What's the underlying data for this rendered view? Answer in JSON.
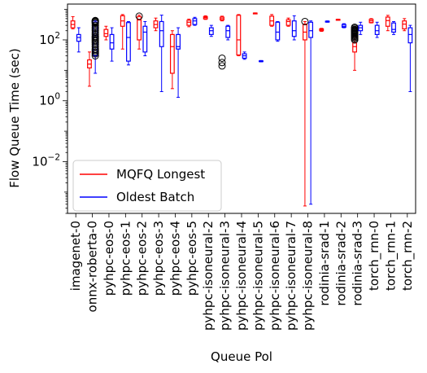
{
  "chart_data": {
    "type": "box",
    "title": "",
    "xlabel": "Queue Pol",
    "ylabel": "Flow Queue Time (sec)",
    "yscale": "log",
    "ylim": [
      0.0002,
      1500
    ],
    "yticks": [
      {
        "value": 0.01,
        "base": "10",
        "exp": "−2"
      },
      {
        "value": 1,
        "base": "10",
        "exp": "0"
      },
      {
        "value": 100,
        "base": "10",
        "exp": "2"
      }
    ],
    "categories": [
      "imagenet-0",
      "onnx-roberta-0",
      "pyhpc-eos-0",
      "pyhpc-eos-1",
      "pyhpc-eos-2",
      "pyhpc-eos-3",
      "pyhpc-eos-4",
      "pyhpc-eos-5",
      "pyhpc-isoneural-2",
      "pyhpc-isoneural-3",
      "pyhpc-isoneural-4",
      "pyhpc-isoneural-5",
      "pyhpc-isoneural-6",
      "pyhpc-isoneural-7",
      "pyhpc-isoneural-8",
      "rodinia-srad-1",
      "rodinia-srad-2",
      "rodinia-srad-3",
      "torch_rnn-0",
      "torch_rnn-1",
      "torch_rnn-2"
    ],
    "legend": {
      "position": "lower-left",
      "entries": [
        "MQFQ Longest",
        "Oldest Batch"
      ]
    },
    "colors": {
      "mqfq": "#ff0000",
      "oldest": "#0000ff"
    },
    "series": [
      {
        "name": "MQFQ Longest",
        "color": "#ff0000",
        "boxes": [
          {
            "wl": 230,
            "q1": 250,
            "med": 320,
            "q3": 420,
            "wh": 580,
            "fl": []
          },
          {
            "wl": 3,
            "q1": 12,
            "med": 16,
            "q3": 22,
            "wh": 40,
            "fl": []
          },
          {
            "wl": 100,
            "q1": 130,
            "med": 160,
            "q3": 220,
            "wh": 280,
            "fl": []
          },
          {
            "wl": 50,
            "q1": 280,
            "med": 420,
            "q3": 620,
            "wh": 680,
            "fl": []
          },
          {
            "wl": 50,
            "q1": 100,
            "med": 450,
            "q3": 580,
            "wh": 650,
            "fl": [
              600
            ]
          },
          {
            "wl": 200,
            "q1": 250,
            "med": 320,
            "q3": 420,
            "wh": 520,
            "fl": []
          },
          {
            "wl": 2.5,
            "q1": 8,
            "med": 60,
            "q3": 150,
            "wh": 200,
            "fl": []
          },
          {
            "wl": 270,
            "q1": 300,
            "med": 380,
            "q3": 440,
            "wh": 480,
            "fl": []
          },
          {
            "wl": 470,
            "q1": 490,
            "med": 540,
            "q3": 580,
            "wh": 620,
            "fl": []
          },
          {
            "wl": 420,
            "q1": 450,
            "med": 500,
            "q3": 560,
            "wh": 600,
            "fl": [
              25,
              18,
              14
            ]
          },
          {
            "wl": 30,
            "q1": 32,
            "med": 100,
            "q3": 640,
            "wh": 680,
            "fl": []
          },
          {
            "wl": 730,
            "q1": 740,
            "med": 750,
            "q3": 760,
            "wh": 770,
            "fl": []
          },
          {
            "wl": 280,
            "q1": 300,
            "med": 420,
            "q3": 600,
            "wh": 680,
            "fl": []
          },
          {
            "wl": 280,
            "q1": 300,
            "med": 400,
            "q3": 460,
            "wh": 520,
            "fl": []
          },
          {
            "wl": 0.00035,
            "q1": 100,
            "med": 180,
            "q3": 330,
            "wh": 400,
            "fl": [
              400
            ]
          },
          {
            "wl": 190,
            "q1": 200,
            "med": 215,
            "q3": 230,
            "wh": 240,
            "fl": []
          },
          {
            "wl": 440,
            "q1": 450,
            "med": 460,
            "q3": 470,
            "wh": 480,
            "fl": []
          },
          {
            "wl": 10,
            "q1": 40,
            "med": 60,
            "q3": 80,
            "wh": 150,
            "fl": [
              100,
              110,
              120,
              130,
              140,
              150,
              160,
              170,
              180,
              190,
              200,
              210,
              220,
              240,
              260
            ]
          },
          {
            "wl": 360,
            "q1": 370,
            "med": 420,
            "q3": 470,
            "wh": 500,
            "fl": []
          },
          {
            "wl": 200,
            "q1": 280,
            "med": 430,
            "q3": 560,
            "wh": 640,
            "fl": []
          },
          {
            "wl": 200,
            "q1": 230,
            "med": 330,
            "q3": 420,
            "wh": 500,
            "fl": []
          }
        ]
      },
      {
        "name": "Oldest Batch",
        "color": "#0000ff",
        "boxes": [
          {
            "wl": 40,
            "q1": 90,
            "med": 120,
            "q3": 150,
            "wh": 250,
            "fl": []
          },
          {
            "wl": 8,
            "q1": 30,
            "med": 140,
            "q3": 380,
            "wh": 420,
            "fl": [
              30,
              35,
              40,
              45,
              50,
              60,
              70,
              80,
              90,
              100,
              110,
              120,
              130,
              150,
              170,
              200,
              230,
              260,
              300,
              350,
              380,
              400,
              420,
              430
            ]
          },
          {
            "wl": 20,
            "q1": 50,
            "med": 80,
            "q3": 150,
            "wh": 250,
            "fl": []
          },
          {
            "wl": 15,
            "q1": 20,
            "med": 120,
            "q3": 370,
            "wh": 400,
            "fl": []
          },
          {
            "wl": 30,
            "q1": 40,
            "med": 180,
            "q3": 280,
            "wh": 400,
            "fl": []
          },
          {
            "wl": 2,
            "q1": 60,
            "med": 200,
            "q3": 400,
            "wh": 650,
            "fl": []
          },
          {
            "wl": 1.3,
            "q1": 50,
            "med": 60,
            "q3": 150,
            "wh": 250,
            "fl": []
          },
          {
            "wl": 300,
            "q1": 320,
            "med": 420,
            "q3": 500,
            "wh": 550,
            "fl": []
          },
          {
            "wl": 130,
            "q1": 150,
            "med": 200,
            "q3": 250,
            "wh": 300,
            "fl": []
          },
          {
            "wl": 100,
            "q1": 120,
            "med": 200,
            "q3": 280,
            "wh": 300,
            "fl": []
          },
          {
            "wl": 23,
            "q1": 25,
            "med": 30,
            "q3": 35,
            "wh": 40,
            "fl": []
          },
          {
            "wl": 19,
            "q1": 19.5,
            "med": 20,
            "q3": 20.5,
            "wh": 21,
            "fl": []
          },
          {
            "wl": 90,
            "q1": 100,
            "med": 180,
            "q3": 380,
            "wh": 400,
            "fl": []
          },
          {
            "wl": 100,
            "q1": 130,
            "med": 200,
            "q3": 420,
            "wh": 620,
            "fl": []
          },
          {
            "wl": 0.0004,
            "q1": 120,
            "med": 200,
            "q3": 380,
            "wh": 420,
            "fl": []
          },
          {
            "wl": 380,
            "q1": 390,
            "med": 400,
            "q3": 410,
            "wh": 420,
            "fl": []
          },
          {
            "wl": 250,
            "q1": 260,
            "med": 280,
            "q3": 320,
            "wh": 340,
            "fl": []
          },
          {
            "wl": 150,
            "q1": 200,
            "med": 250,
            "q3": 300,
            "wh": 380,
            "fl": []
          },
          {
            "wl": 120,
            "q1": 150,
            "med": 200,
            "q3": 300,
            "wh": 380,
            "fl": []
          },
          {
            "wl": 150,
            "q1": 180,
            "med": 220,
            "q3": 360,
            "wh": 400,
            "fl": []
          },
          {
            "wl": 2,
            "q1": 80,
            "med": 150,
            "q3": 250,
            "wh": 300,
            "fl": []
          }
        ]
      }
    ]
  }
}
